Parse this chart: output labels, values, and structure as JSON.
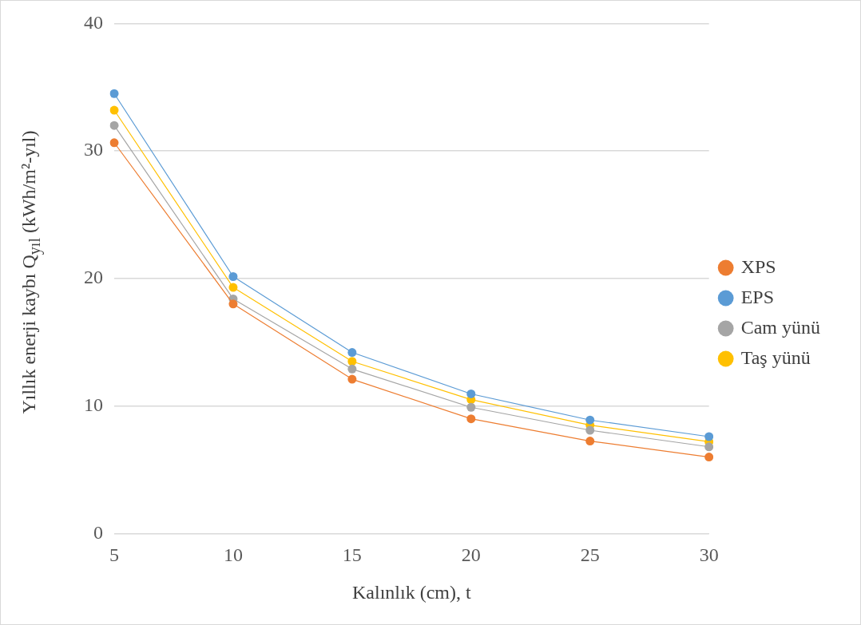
{
  "chart_data": {
    "type": "line",
    "xlabel": "Kalınlık (cm), t",
    "ylabel": "Yıllık enerji kaybı Q$_{yıl}$ (kWh/m²-yıl)",
    "categories": [
      "5",
      "10",
      "15",
      "20",
      "25",
      "30"
    ],
    "series": [
      {
        "name": "XPS",
        "color": "#ed7d31",
        "values": [
          30.65,
          18.0,
          12.1,
          9.0,
          7.25,
          6.0
        ]
      },
      {
        "name": "EPS",
        "color": "#5b9bd5",
        "values": [
          34.5,
          20.15,
          14.2,
          10.95,
          8.9,
          7.6
        ]
      },
      {
        "name": "Cam yünü",
        "color": "#a5a5a5",
        "values": [
          32.0,
          18.4,
          12.9,
          9.9,
          8.1,
          6.8
        ]
      },
      {
        "name": "Taş yünü",
        "color": "#ffc000",
        "values": [
          33.2,
          19.3,
          13.5,
          10.5,
          8.5,
          7.2
        ]
      }
    ],
    "ylim": [
      0,
      40
    ],
    "yticks": [
      0,
      10,
      20,
      30,
      40
    ],
    "grid": "y",
    "legend": "right",
    "marker": "circle",
    "line_style": "solid"
  }
}
